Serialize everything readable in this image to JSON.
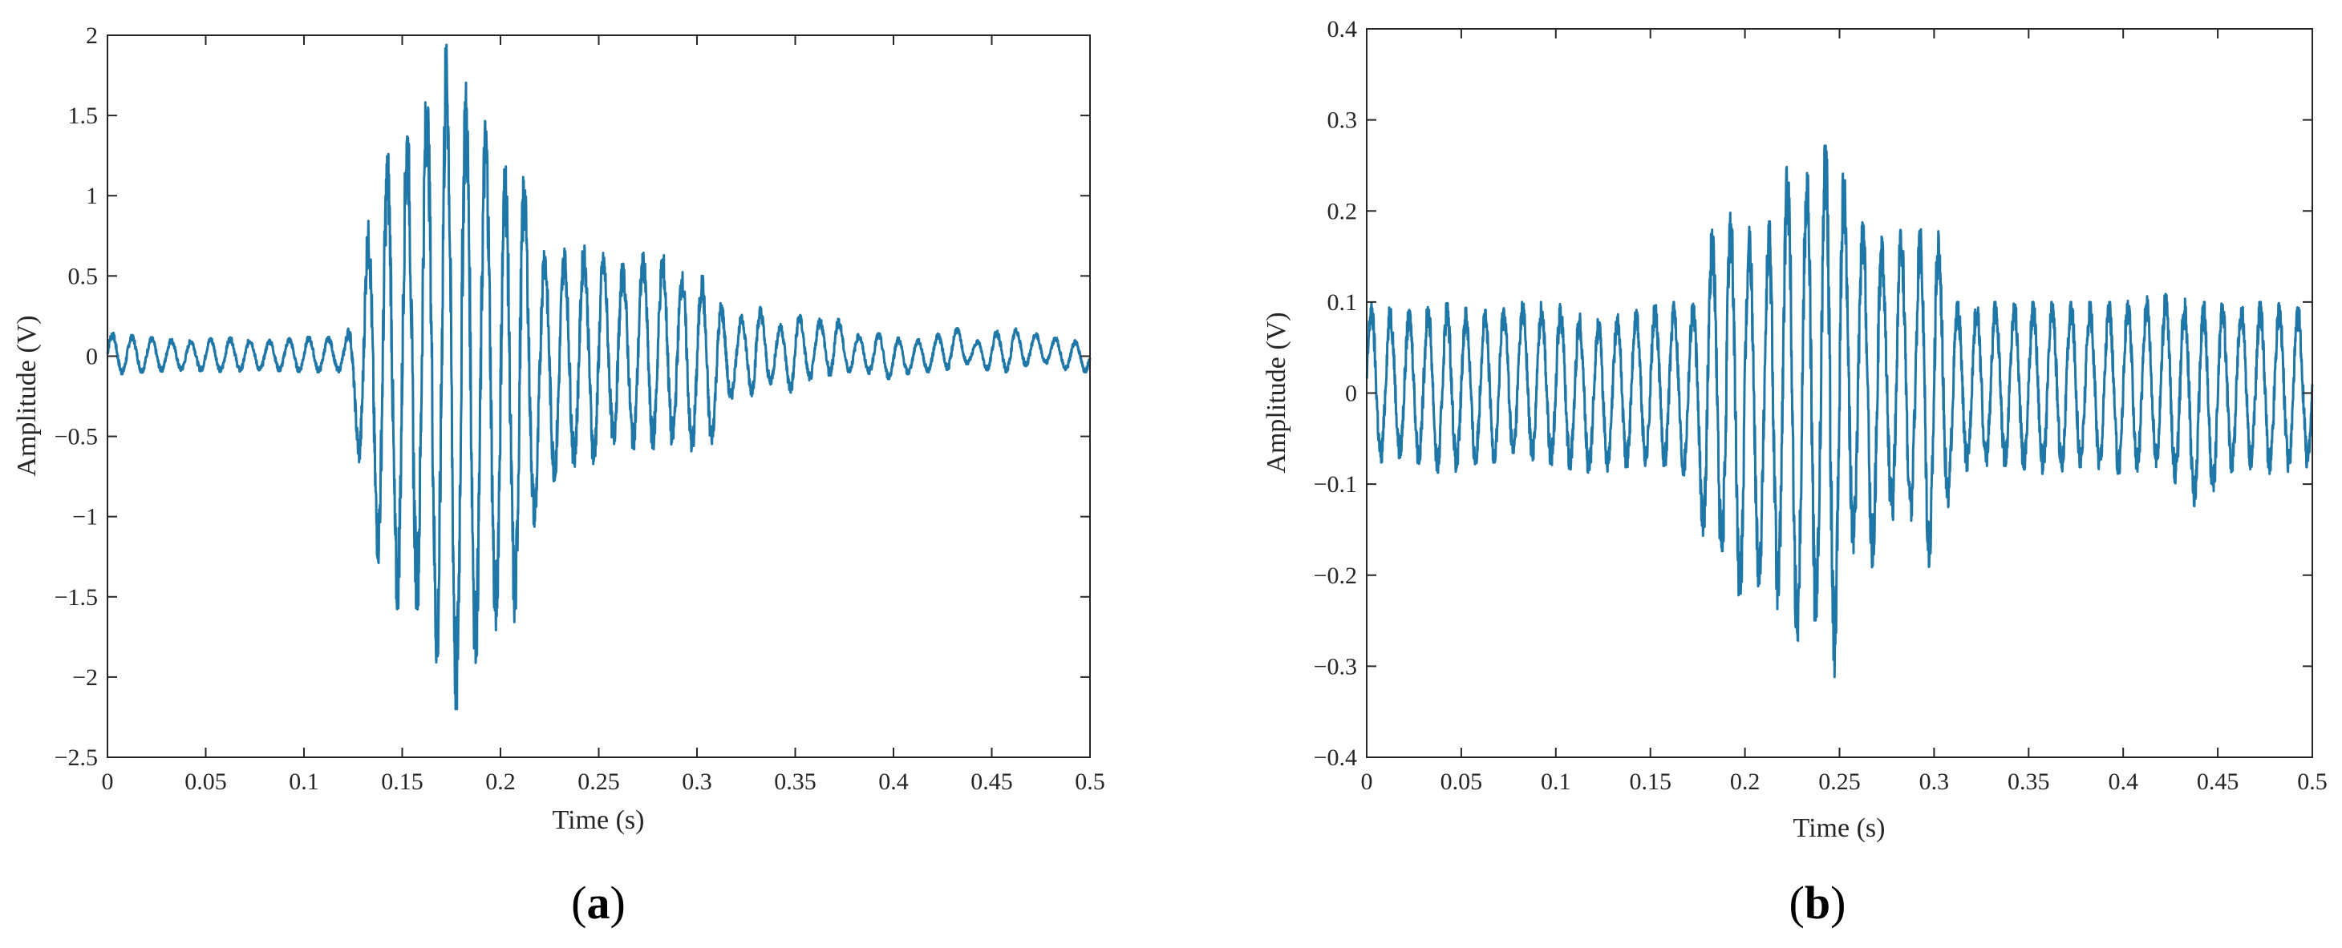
{
  "colors": {
    "line": "#1f77a8",
    "axes": "#262626",
    "background": "#ffffff"
  },
  "chart_data": [
    {
      "id": "a",
      "type": "line",
      "panel_label": "a",
      "xlabel": "Time (s)",
      "ylabel": "Amplitude (V)",
      "xlim": [
        0,
        0.5
      ],
      "ylim": [
        -2.5,
        2
      ],
      "xticks": [
        0,
        0.05,
        0.1,
        0.15,
        0.2,
        0.25,
        0.3,
        0.35,
        0.4,
        0.45,
        0.5
      ],
      "xtick_labels": [
        "0",
        "0.05",
        "0.1",
        "0.15",
        "0.2",
        "0.25",
        "0.3",
        "0.35",
        "0.4",
        "0.45",
        "0.5"
      ],
      "yticks": [
        -2.5,
        -2,
        -1.5,
        -1,
        -0.5,
        0,
        0.5,
        1,
        1.5,
        2
      ],
      "ytick_labels": [
        "−2.5",
        "−2",
        "−1.5",
        "−1",
        "−0.5",
        "0",
        "0.5",
        "1",
        "1.5",
        "2"
      ],
      "grid": false,
      "legend": "none",
      "series": [
        {
          "x": [
            0,
            0.02,
            0.04,
            0.06,
            0.08,
            0.1,
            0.12,
            0.126,
            0.13,
            0.135,
            0.14,
            0.145,
            0.15,
            0.155,
            0.16,
            0.165,
            0.17,
            0.175,
            0.18,
            0.185,
            0.19,
            0.195,
            0.2,
            0.205,
            0.21,
            0.215,
            0.22,
            0.225,
            0.23,
            0.235,
            0.24,
            0.245,
            0.25,
            0.255,
            0.26,
            0.265,
            0.27,
            0.275,
            0.28,
            0.285,
            0.29,
            0.295,
            0.3,
            0.305,
            0.31,
            0.315,
            0.32,
            0.325,
            0.33,
            0.335,
            0.34,
            0.345,
            0.35,
            0.355,
            0.36,
            0.365,
            0.37,
            0.375,
            0.38,
            0.385,
            0.39,
            0.4,
            0.41,
            0.42,
            0.43,
            0.435,
            0.44,
            0.45,
            0.46,
            0.47,
            0.48,
            0.49,
            0.5
          ],
          "y_min": [
            -0.12,
            -0.1,
            -0.09,
            -0.1,
            -0.09,
            -0.1,
            -0.1,
            -0.45,
            -0.88,
            -1.1,
            -1.42,
            -1.6,
            -1.55,
            -1.55,
            -1.6,
            -1.65,
            -2.2,
            -2.2,
            -2.2,
            -2.1,
            -1.7,
            -1.6,
            -1.8,
            -1.84,
            -1.4,
            -1.2,
            -0.9,
            -0.8,
            -0.75,
            -0.7,
            -0.68,
            -0.65,
            -0.7,
            -0.55,
            -0.55,
            -0.55,
            -0.6,
            -0.55,
            -0.6,
            -0.55,
            -0.55,
            -0.6,
            -0.6,
            -0.6,
            -0.5,
            -0.35,
            -0.2,
            -0.18,
            -0.3,
            -0.2,
            -0.15,
            -0.2,
            -0.25,
            -0.15,
            -0.15,
            -0.1,
            -0.15,
            -0.1,
            -0.1,
            -0.1,
            -0.12,
            -0.15,
            -0.1,
            -0.1,
            -0.08,
            -0.05,
            -0.05,
            -0.1,
            -0.1,
            -0.05,
            -0.05,
            -0.1,
            -0.1
          ],
          "y_max": [
            0.15,
            0.12,
            0.1,
            0.12,
            0.1,
            0.12,
            0.12,
            0.24,
            0.58,
            1.05,
            1.2,
            1.3,
            1.37,
            1.5,
            1.6,
            1.7,
            1.9,
            1.98,
            1.9,
            1.5,
            1.55,
            1.35,
            1.28,
            1.1,
            1.55,
            0.6,
            0.72,
            0.65,
            0.66,
            0.68,
            0.7,
            0.68,
            0.72,
            0.55,
            0.65,
            0.5,
            0.6,
            0.68,
            0.6,
            0.65,
            0.55,
            0.5,
            0.5,
            0.5,
            0.35,
            0.3,
            0.2,
            0.3,
            0.35,
            0.25,
            0.2,
            0.2,
            0.32,
            0.2,
            0.22,
            0.25,
            0.3,
            0.15,
            0.15,
            0.12,
            0.15,
            0.12,
            0.1,
            0.12,
            0.2,
            0.15,
            0.08,
            0.15,
            0.18,
            0.15,
            0.12,
            0.1,
            0.1
          ]
        }
      ]
    },
    {
      "id": "b",
      "type": "line",
      "panel_label": "b",
      "xlabel": "Time (s)",
      "ylabel": "Amplitude (V)",
      "xlim": [
        0,
        0.5
      ],
      "ylim": [
        -0.4,
        0.4
      ],
      "xticks": [
        0,
        0.05,
        0.1,
        0.15,
        0.2,
        0.25,
        0.3,
        0.35,
        0.4,
        0.45,
        0.5
      ],
      "xtick_labels": [
        "0",
        "0.05",
        "0.1",
        "0.15",
        "0.2",
        "0.25",
        "0.3",
        "0.35",
        "0.4",
        "0.45",
        "0.5"
      ],
      "yticks": [
        -0.4,
        -0.3,
        -0.2,
        -0.1,
        0,
        0.1,
        0.2,
        0.3,
        0.4
      ],
      "ytick_labels": [
        "−0.4",
        "−0.3",
        "−0.2",
        "−0.1",
        "0",
        "0.1",
        "0.2",
        "0.3",
        "0.4"
      ],
      "grid": false,
      "legend": "none",
      "series": [
        {
          "x": [
            0,
            0.02,
            0.04,
            0.06,
            0.08,
            0.1,
            0.12,
            0.14,
            0.16,
            0.175,
            0.18,
            0.185,
            0.19,
            0.195,
            0.2,
            0.205,
            0.21,
            0.215,
            0.22,
            0.225,
            0.23,
            0.235,
            0.24,
            0.245,
            0.25,
            0.255,
            0.26,
            0.265,
            0.27,
            0.275,
            0.28,
            0.285,
            0.29,
            0.295,
            0.3,
            0.305,
            0.31,
            0.32,
            0.34,
            0.36,
            0.38,
            0.4,
            0.42,
            0.44,
            0.46,
            0.48,
            0.5
          ],
          "y_min": [
            -0.08,
            -0.07,
            -0.09,
            -0.08,
            -0.07,
            -0.08,
            -0.09,
            -0.08,
            -0.08,
            -0.1,
            -0.2,
            -0.15,
            -0.23,
            -0.26,
            -0.2,
            -0.22,
            -0.2,
            -0.25,
            -0.22,
            -0.26,
            -0.28,
            -0.25,
            -0.27,
            -0.35,
            -0.27,
            -0.2,
            -0.15,
            -0.2,
            -0.18,
            -0.12,
            -0.16,
            -0.13,
            -0.15,
            -0.2,
            -0.18,
            -0.15,
            -0.1,
            -0.08,
            -0.08,
            -0.09,
            -0.08,
            -0.09,
            -0.08,
            -0.13,
            -0.08,
            -0.09,
            -0.08
          ],
          "y_max": [
            0.1,
            0.09,
            0.1,
            0.09,
            0.1,
            0.1,
            0.08,
            0.09,
            0.1,
            0.1,
            0.15,
            0.21,
            0.21,
            0.2,
            0.21,
            0.15,
            0.15,
            0.22,
            0.24,
            0.26,
            0.2,
            0.3,
            0.22,
            0.34,
            0.28,
            0.2,
            0.2,
            0.17,
            0.19,
            0.15,
            0.17,
            0.19,
            0.15,
            0.21,
            0.2,
            0.15,
            0.1,
            0.1,
            0.1,
            0.1,
            0.1,
            0.1,
            0.11,
            0.1,
            0.1,
            0.1,
            0.09
          ]
        }
      ]
    }
  ]
}
